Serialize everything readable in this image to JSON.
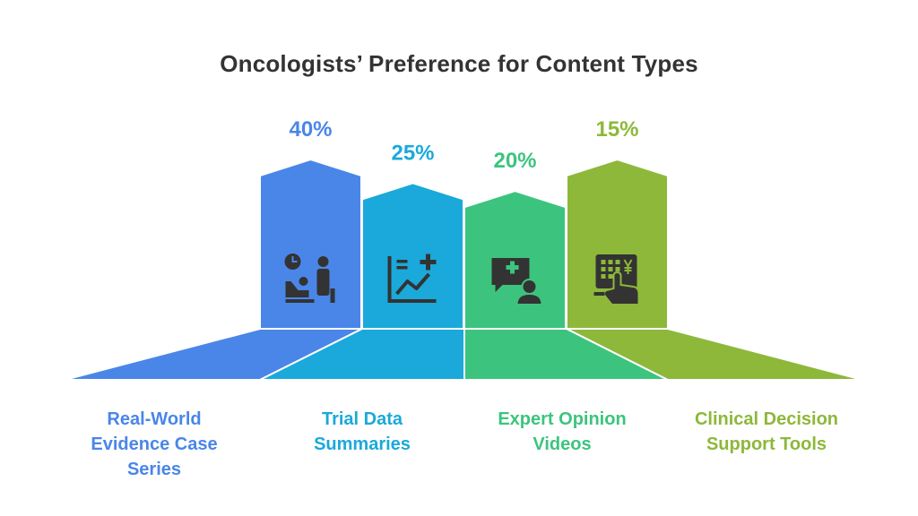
{
  "title": "Oncologists’ Preference for Content Types",
  "chart_data": {
    "type": "bar",
    "title": "Oncologists’ Preference for Content Types",
    "categories": [
      "Real-World Evidence Case Series",
      "Trial Data Summaries",
      "Expert Opinion Videos",
      "Clinical Decision Support Tools"
    ],
    "values": [
      40,
      25,
      20,
      15
    ],
    "value_labels": [
      "40%",
      "25%",
      "20%",
      "15%"
    ],
    "category_lines": [
      [
        "Real-World",
        "Evidence Case",
        "Series"
      ],
      [
        "Trial Data",
        "Summaries"
      ],
      [
        "Expert Opinion",
        "Videos"
      ],
      [
        "Clinical Decision",
        "Support Tools"
      ]
    ],
    "colors": [
      "#4A86E8",
      "#1AA9DA",
      "#3CC47E",
      "#8DB83A"
    ],
    "icons": [
      "patient-consultation-icon",
      "chart-plus-icon",
      "medical-video-icon",
      "calculator-touch-icon"
    ]
  }
}
